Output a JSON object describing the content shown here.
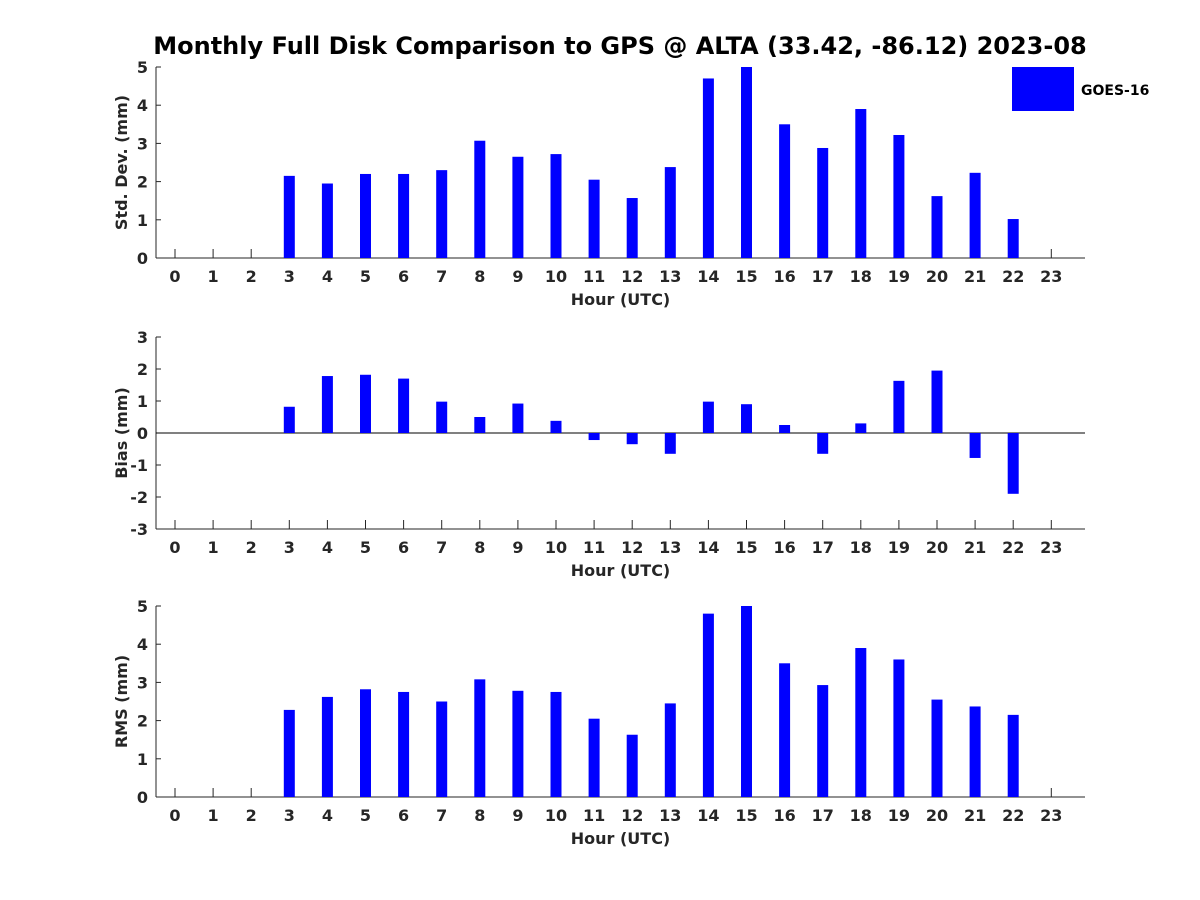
{
  "title": "Monthly Full Disk Comparison to GPS @ ALTA (33.42, -86.12) 2023-08",
  "legend": {
    "label": "GOES-16",
    "color": "#0000ff",
    "placement": "top-right"
  },
  "chart_data": [
    {
      "type": "bar",
      "name": "std-dev",
      "ylabel": "Std. Dev. (mm)",
      "xlabel": "Hour (UTC)",
      "categories": [
        "0",
        "1",
        "2",
        "3",
        "4",
        "5",
        "6",
        "7",
        "8",
        "9",
        "10",
        "11",
        "12",
        "13",
        "14",
        "15",
        "16",
        "17",
        "18",
        "19",
        "20",
        "21",
        "22",
        "23"
      ],
      "yticks": [
        "0",
        "1",
        "2",
        "3",
        "4",
        "5"
      ],
      "ylim": [
        0,
        5
      ],
      "series": [
        {
          "name": "GOES-16",
          "color": "#0000ff",
          "values": [
            null,
            null,
            null,
            2.15,
            1.95,
            2.2,
            2.2,
            2.3,
            3.07,
            2.65,
            2.72,
            2.05,
            1.57,
            2.38,
            4.7,
            5.0,
            3.5,
            2.88,
            3.9,
            3.22,
            1.62,
            2.23,
            1.02,
            null
          ]
        }
      ]
    },
    {
      "type": "bar",
      "name": "bias",
      "ylabel": "Bias (mm)",
      "xlabel": "Hour (UTC)",
      "categories": [
        "0",
        "1",
        "2",
        "3",
        "4",
        "5",
        "6",
        "7",
        "8",
        "9",
        "10",
        "11",
        "12",
        "13",
        "14",
        "15",
        "16",
        "17",
        "18",
        "19",
        "20",
        "21",
        "22",
        "23"
      ],
      "yticks": [
        "-3",
        "-2",
        "-1",
        "0",
        "1",
        "2",
        "3"
      ],
      "ylim": [
        -3,
        3
      ],
      "zero_line": true,
      "series": [
        {
          "name": "GOES-16",
          "color": "#0000ff",
          "values": [
            null,
            null,
            null,
            0.82,
            1.78,
            1.82,
            1.7,
            0.98,
            0.5,
            0.92,
            0.38,
            -0.22,
            -0.35,
            -0.65,
            0.98,
            0.9,
            0.25,
            -0.65,
            0.3,
            1.63,
            1.95,
            -0.78,
            -1.9,
            null
          ]
        }
      ]
    },
    {
      "type": "bar",
      "name": "rms",
      "ylabel": "RMS (mm)",
      "xlabel": "Hour (UTC)",
      "categories": [
        "0",
        "1",
        "2",
        "3",
        "4",
        "5",
        "6",
        "7",
        "8",
        "9",
        "10",
        "11",
        "12",
        "13",
        "14",
        "15",
        "16",
        "17",
        "18",
        "19",
        "20",
        "21",
        "22",
        "23"
      ],
      "yticks": [
        "0",
        "1",
        "2",
        "3",
        "4",
        "5"
      ],
      "ylim": [
        0,
        5
      ],
      "series": [
        {
          "name": "GOES-16",
          "color": "#0000ff",
          "values": [
            null,
            null,
            null,
            2.28,
            2.62,
            2.82,
            2.75,
            2.5,
            3.08,
            2.78,
            2.75,
            2.05,
            1.63,
            2.45,
            4.8,
            5.0,
            3.5,
            2.93,
            3.9,
            3.6,
            2.55,
            2.37,
            2.15,
            null
          ]
        }
      ]
    }
  ]
}
